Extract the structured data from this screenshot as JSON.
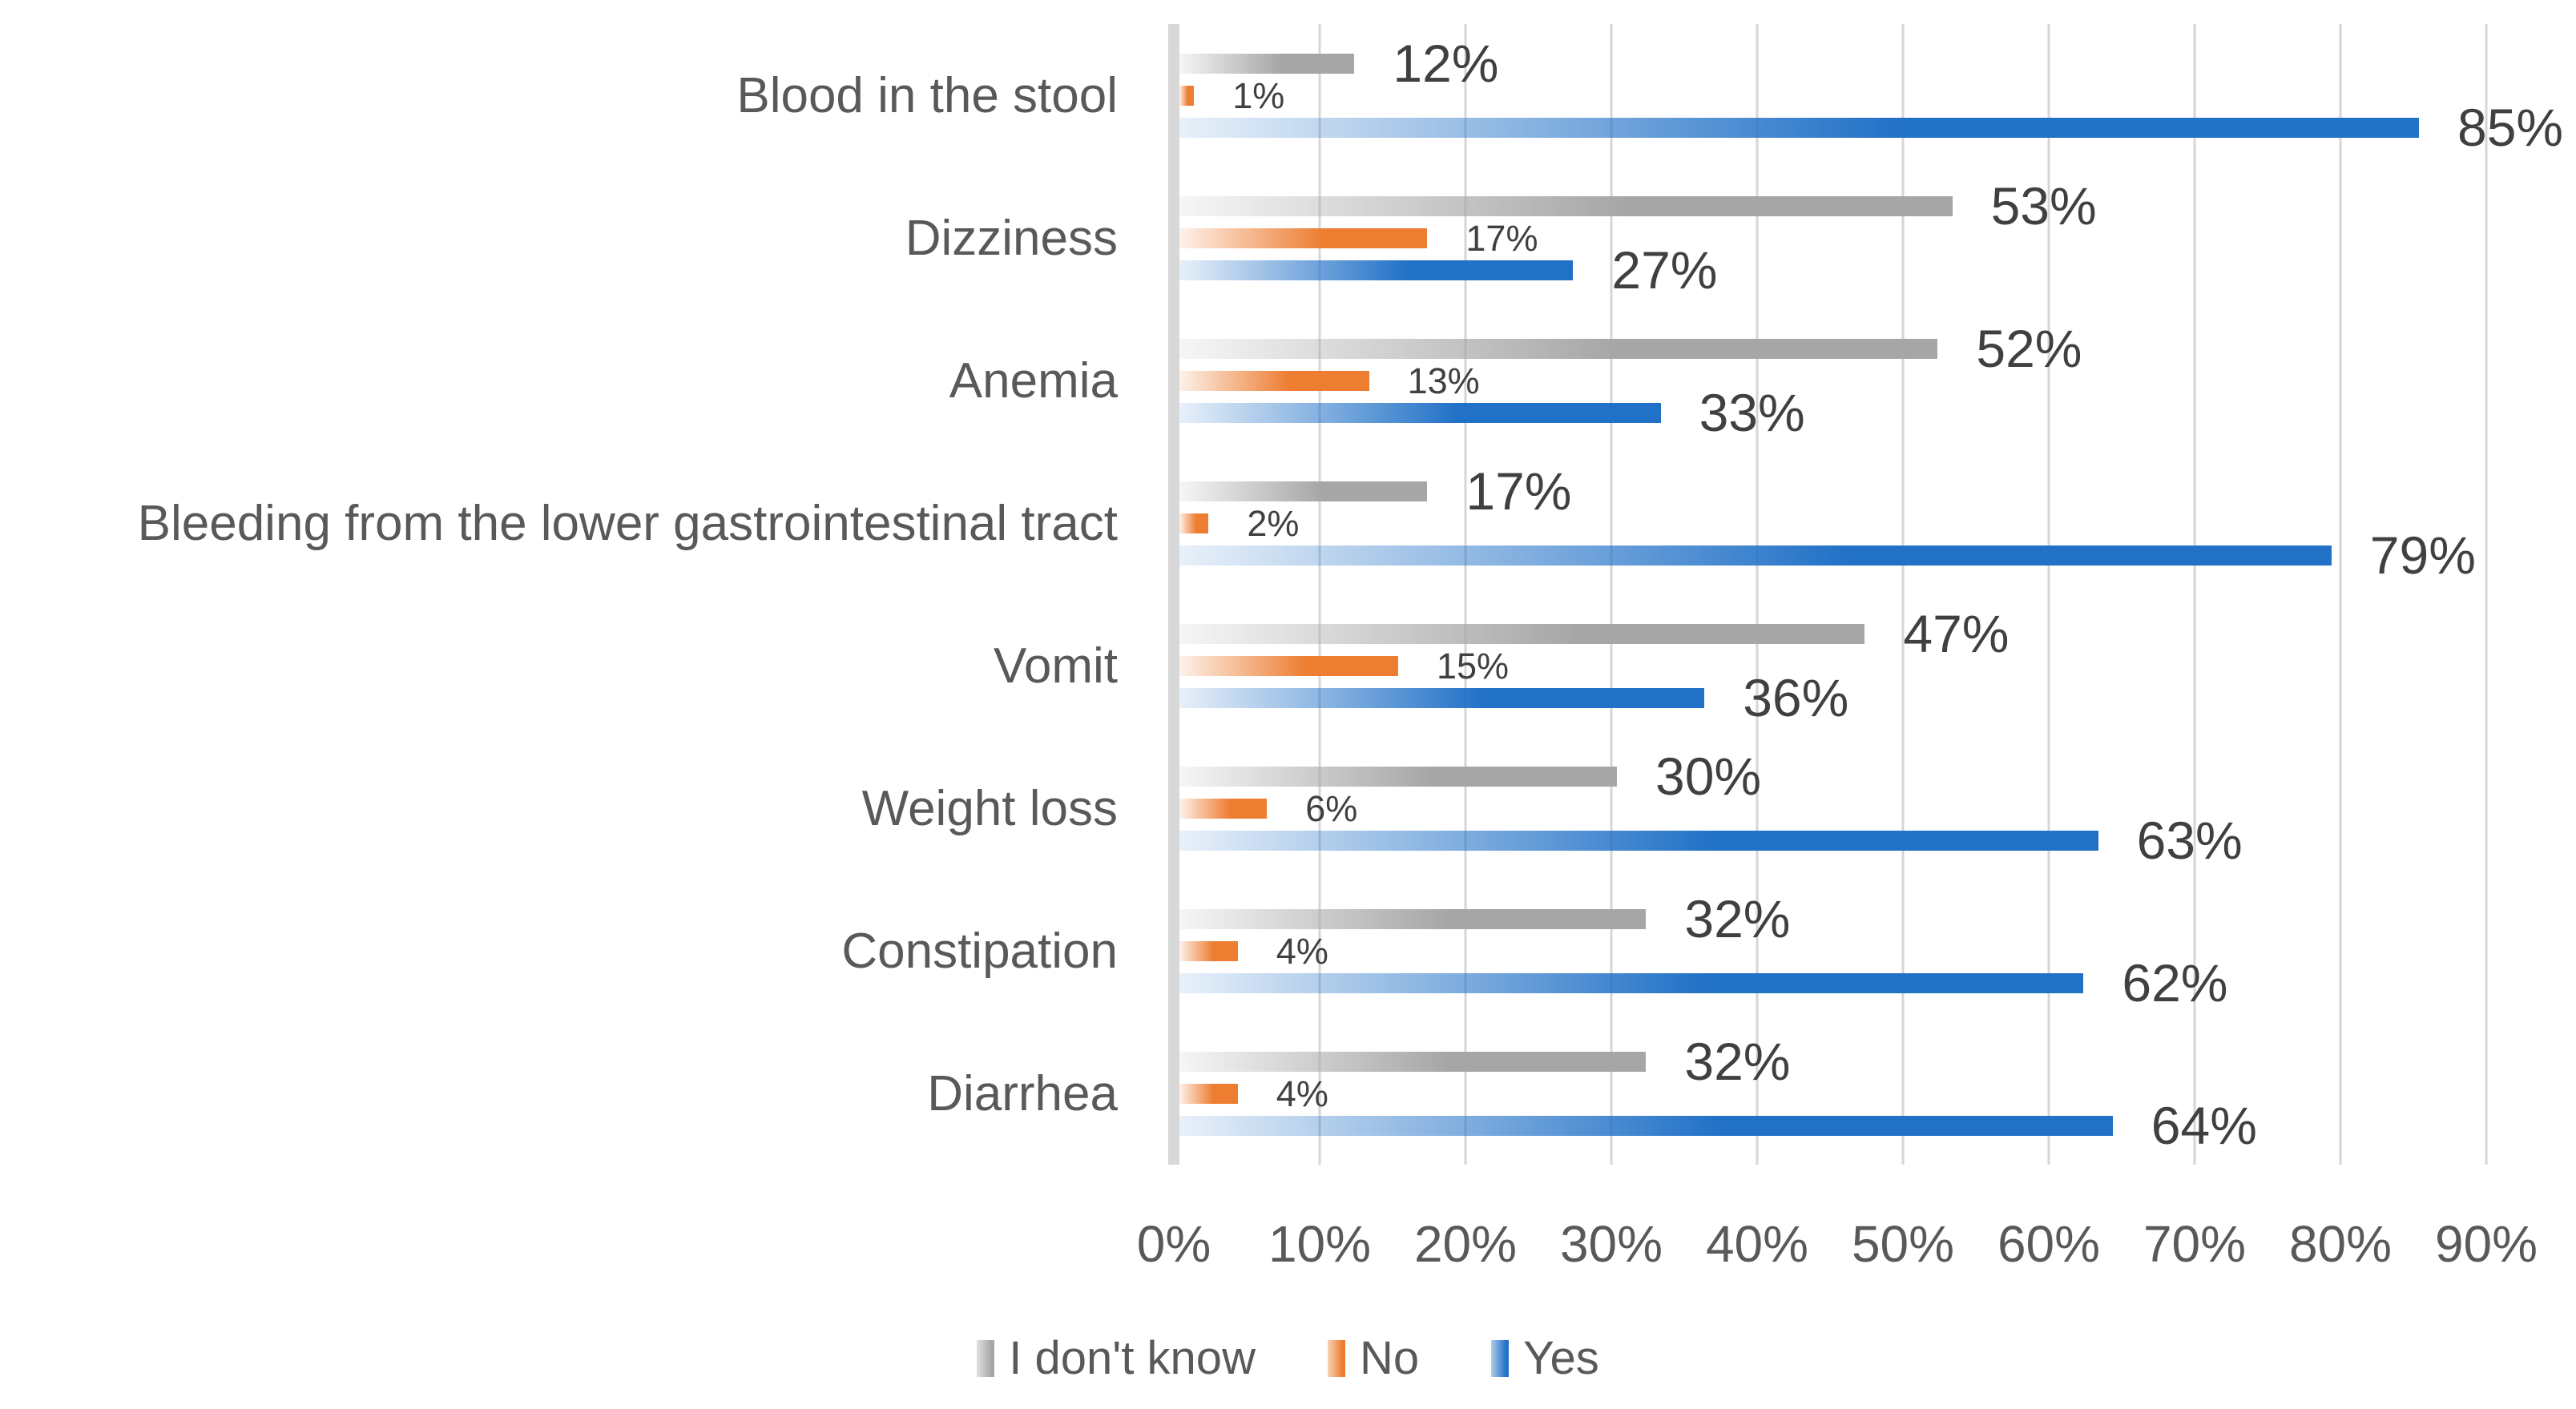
{
  "chart_data": {
    "type": "bar",
    "orientation": "horizontal",
    "title": "",
    "categories": [
      "Blood in the stool",
      "Dizziness",
      "Anemia",
      "Bleeding from the lower gastrointestinal tract",
      "Vomit",
      "Weight loss",
      "Constipation",
      "Diarrhea"
    ],
    "series": [
      {
        "name": "I don't know",
        "color": "#a6a6a6",
        "values": [
          12,
          53,
          52,
          17,
          47,
          30,
          32,
          32
        ],
        "labels": [
          "12%",
          "53%",
          "52%",
          "17%",
          "47%",
          "30%",
          "32%",
          "32%"
        ],
        "label_size": "large"
      },
      {
        "name": "No",
        "color": "#ed7d31",
        "values": [
          1,
          17,
          13,
          2,
          15,
          6,
          4,
          4
        ],
        "labels": [
          "1%",
          "17%",
          "13%",
          "2%",
          "15%",
          "6%",
          "4%",
          "4%"
        ],
        "label_size": "small"
      },
      {
        "name": "Yes",
        "color": "#2171c7",
        "values": [
          85,
          27,
          33,
          79,
          36,
          63,
          62,
          64
        ],
        "labels": [
          "85%",
          "27%",
          "33%",
          "79%",
          "36%",
          "63%",
          "62%",
          "64%"
        ],
        "label_size": "large"
      }
    ],
    "x_axis": {
      "min": 0,
      "max": 90,
      "tick_step": 10,
      "tick_labels": [
        "0%",
        "10%",
        "20%",
        "30%",
        "40%",
        "50%",
        "60%",
        "70%",
        "80%",
        "90%"
      ]
    },
    "legend": {
      "position": "bottom",
      "items": [
        "I don't know",
        "No",
        "Yes"
      ]
    },
    "grid": true,
    "colors": {
      "gridline": "#d6d6d6",
      "axis_line": "#d8d8d8",
      "category_label": "#595959",
      "tick_label": "#595959",
      "data_label": "#404040",
      "background": "#ffffff"
    }
  }
}
